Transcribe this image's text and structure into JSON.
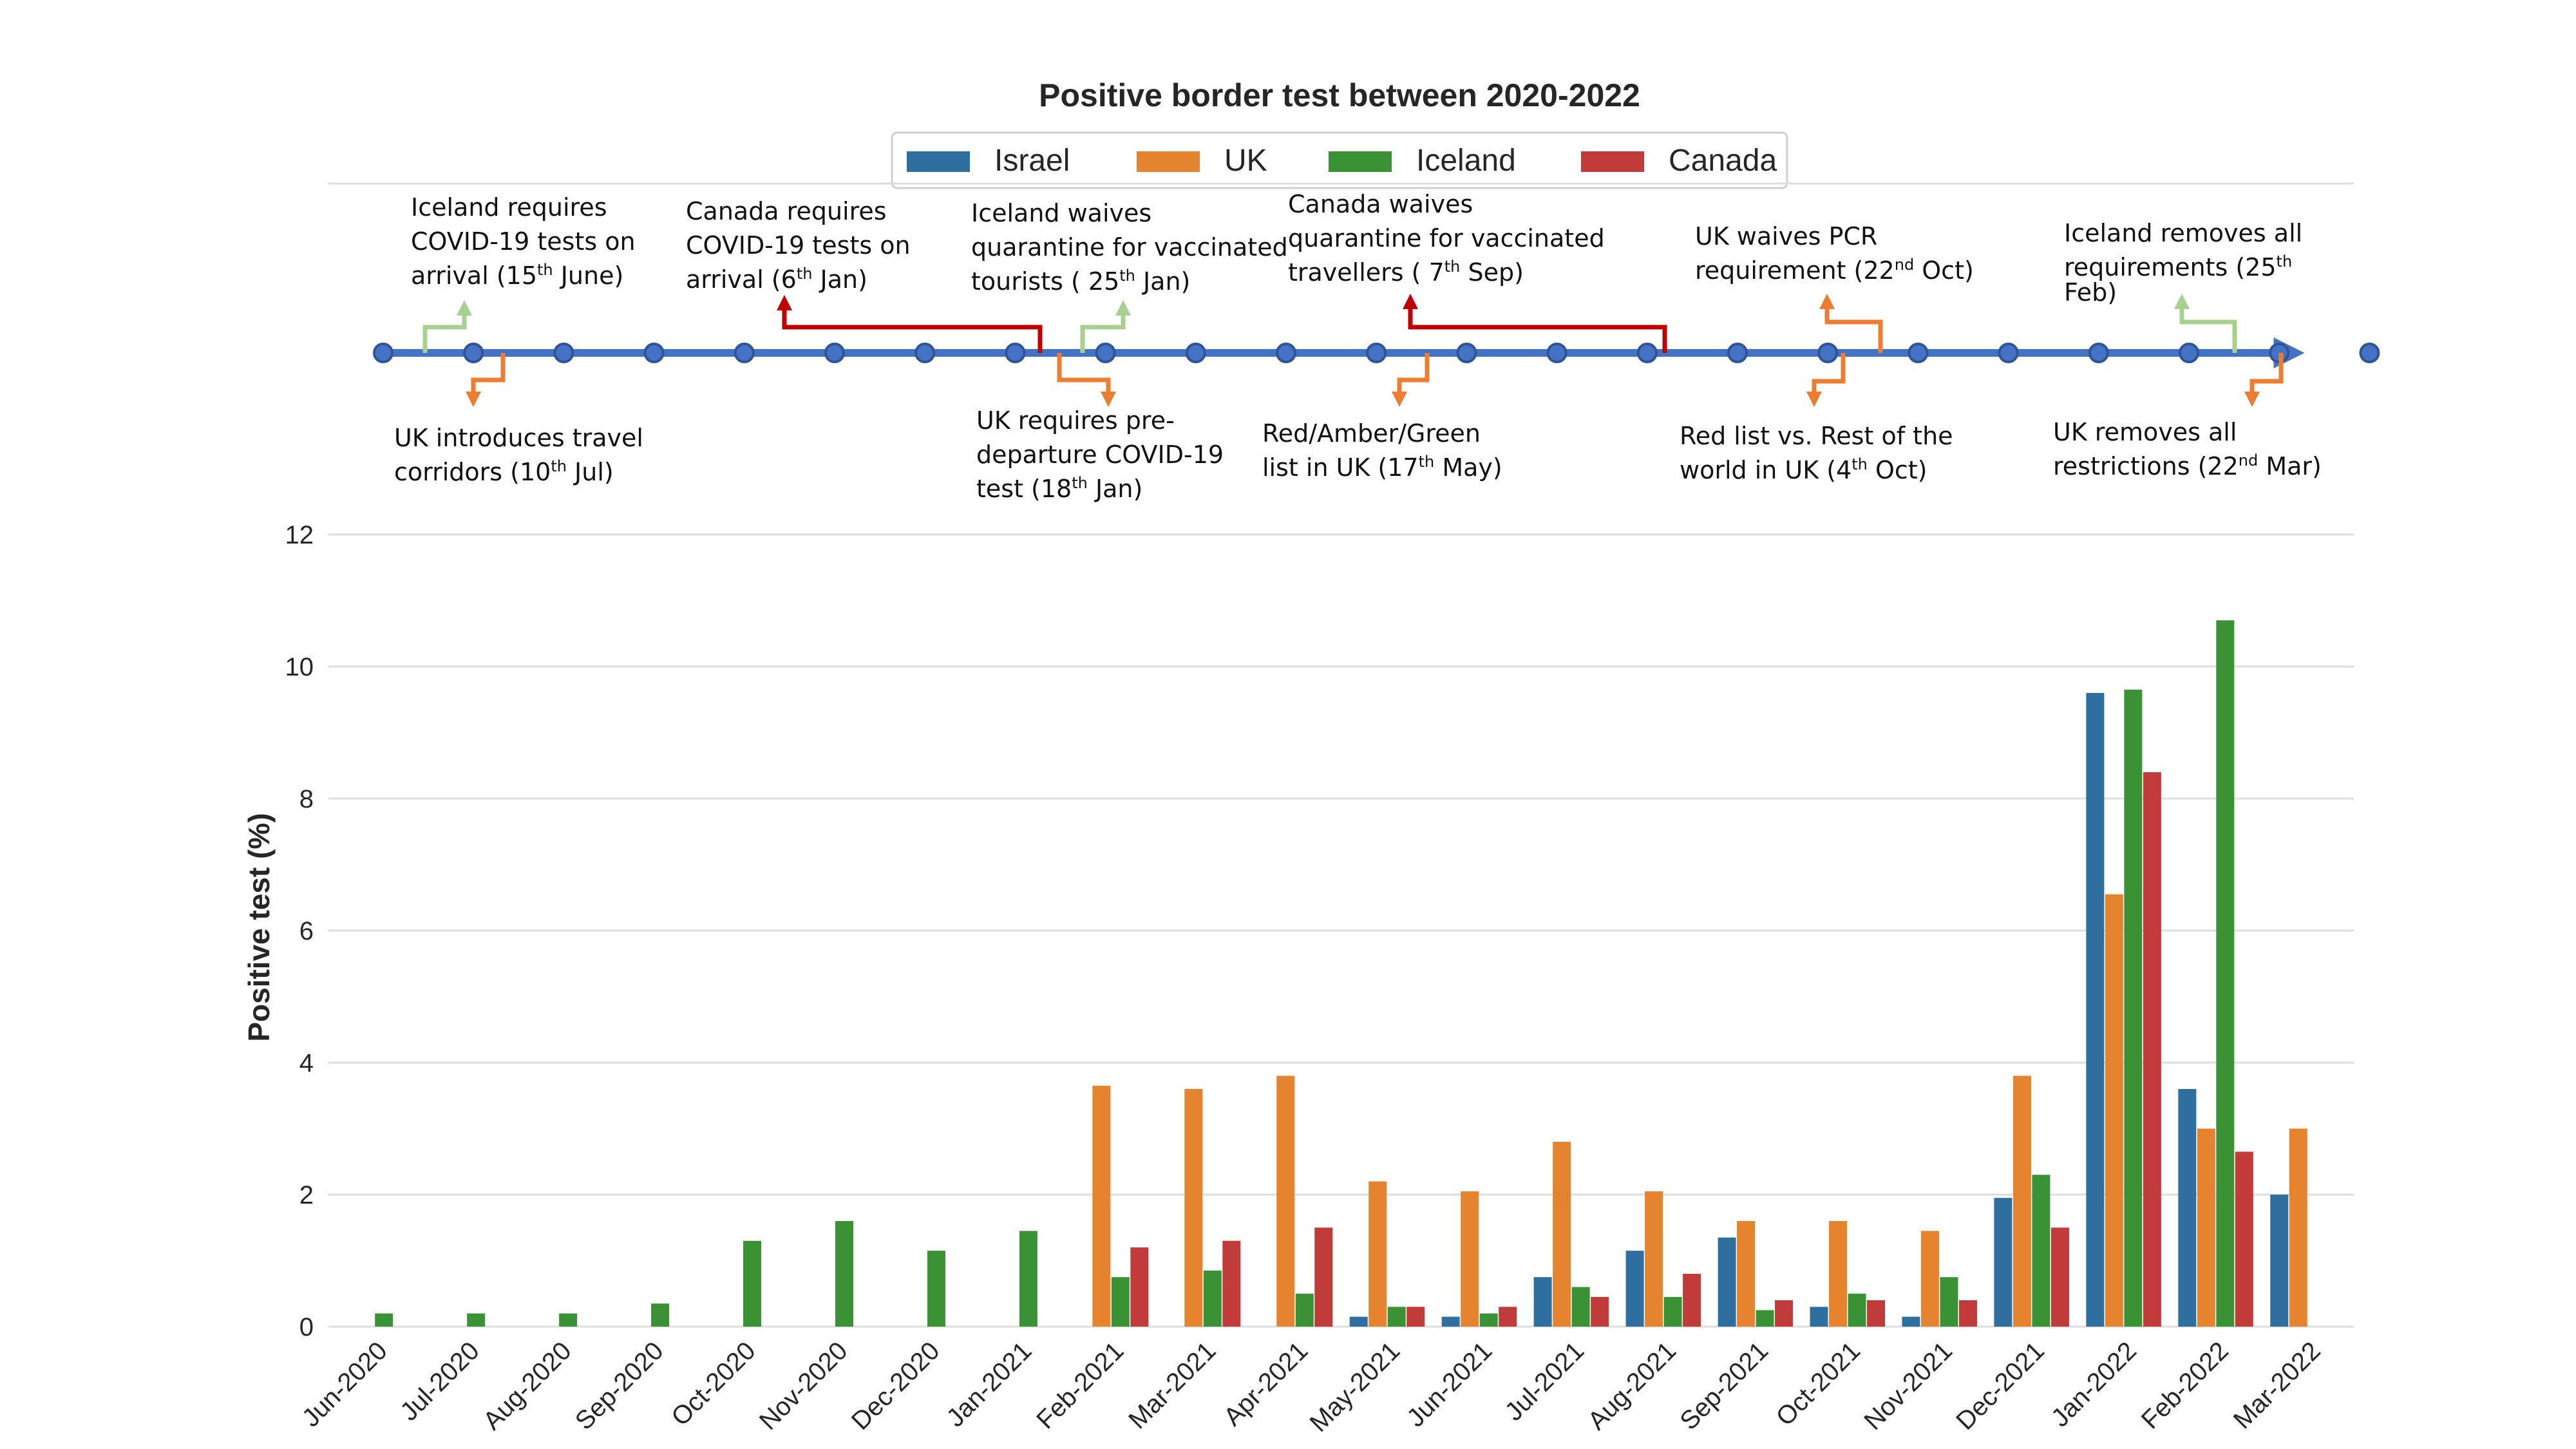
{
  "chart_data": {
    "type": "bar",
    "title": "Positive border test between 2020-2022",
    "xlabel": "",
    "ylabel": "Positive test (%)",
    "ylim": [
      0,
      12
    ],
    "yticks": [
      0,
      2,
      4,
      6,
      8,
      10,
      12
    ],
    "grid": true,
    "legend_position": "top-center",
    "categories": [
      "Jun-2020",
      "Jul-2020",
      "Aug-2020",
      "Sep-2020",
      "Oct-2020",
      "Nov-2020",
      "Dec-2020",
      "Jan-2021",
      "Feb-2021",
      "Mar-2021",
      "Apr-2021",
      "May-2021",
      "Jun-2021",
      "Jul-2021",
      "Aug-2021",
      "Sep-2021",
      "Oct-2021",
      "Nov-2021",
      "Dec-2021",
      "Jan-2022",
      "Feb-2022",
      "Mar-2022"
    ],
    "series": [
      {
        "name": "Israel",
        "color": "#2e6fa0",
        "values": [
          null,
          null,
          null,
          null,
          null,
          null,
          null,
          null,
          null,
          null,
          null,
          0.15,
          0.15,
          0.75,
          1.15,
          1.35,
          0.3,
          0.15,
          1.95,
          9.6,
          3.6,
          2.0
        ]
      },
      {
        "name": "UK",
        "color": "#e5832e",
        "values": [
          null,
          null,
          null,
          null,
          null,
          null,
          null,
          null,
          3.65,
          3.6,
          3.8,
          2.2,
          2.05,
          2.8,
          2.05,
          1.6,
          1.6,
          1.45,
          3.8,
          6.55,
          3.0,
          3.0
        ]
      },
      {
        "name": "Iceland",
        "color": "#3b9235",
        "values": [
          0.2,
          0.2,
          0.2,
          0.35,
          1.3,
          1.6,
          1.15,
          1.45,
          0.75,
          0.85,
          0.5,
          0.3,
          0.2,
          0.6,
          0.45,
          0.25,
          0.5,
          0.75,
          2.3,
          9.65,
          10.7,
          null
        ]
      },
      {
        "name": "Canada",
        "color": "#c13b3b",
        "values": [
          null,
          null,
          null,
          null,
          null,
          null,
          null,
          null,
          1.2,
          1.3,
          1.5,
          0.3,
          0.3,
          0.45,
          0.8,
          0.4,
          0.4,
          0.4,
          1.5,
          8.4,
          2.65,
          null
        ]
      }
    ]
  },
  "timeline": {
    "events": [
      {
        "parts": [
          [
            "Iceland requires",
            ""
          ],
          [
            "COVID-19 tests on",
            ""
          ],
          [
            "arrival (15",
            "th",
            " June)"
          ]
        ],
        "color": "#a9d08e",
        "direction": "up"
      },
      {
        "parts": [
          [
            "UK introduces travel",
            ""
          ],
          [
            "corridors (10",
            "th",
            " Jul)"
          ]
        ],
        "color": "#ed7d31",
        "direction": "down"
      },
      {
        "parts": [
          [
            "Canada requires",
            ""
          ],
          [
            "COVID-19 tests on",
            ""
          ],
          [
            "arrival (6",
            "th",
            " Jan)"
          ]
        ],
        "color": "#c00000",
        "direction": "up"
      },
      {
        "parts": [
          [
            "Iceland waives",
            ""
          ],
          [
            "quarantine for vaccinated",
            ""
          ],
          [
            "tourists ( 25",
            "th",
            " Jan)"
          ]
        ],
        "color": "#a9d08e",
        "direction": "up"
      },
      {
        "parts": [
          [
            "UK requires pre-",
            ""
          ],
          [
            "departure COVID-19",
            ""
          ],
          [
            "test (18",
            "th",
            " Jan)"
          ]
        ],
        "color": "#ed7d31",
        "direction": "down"
      },
      {
        "parts": [
          [
            "Red/Amber/Green",
            ""
          ],
          [
            "list in UK (17",
            "th",
            " May)"
          ]
        ],
        "color": "#ed7d31",
        "direction": "down"
      },
      {
        "parts": [
          [
            "Canada waives",
            ""
          ],
          [
            "quarantine for vaccinated",
            ""
          ],
          [
            "travellers ( 7",
            "th",
            " Sep)"
          ]
        ],
        "color": "#c00000",
        "direction": "up"
      },
      {
        "parts": [
          [
            "UK waives PCR",
            ""
          ],
          [
            "requirement (22",
            "nd",
            " Oct)"
          ]
        ],
        "color": "#ed7d31",
        "direction": "up"
      },
      {
        "parts": [
          [
            "Red list vs. Rest of the",
            ""
          ],
          [
            "world in UK (4",
            "th",
            " Oct)"
          ]
        ],
        "color": "#ed7d31",
        "direction": "down"
      },
      {
        "parts": [
          [
            "Iceland removes all",
            ""
          ],
          [
            "requirements (25",
            "th",
            ""
          ],
          [
            "Feb)",
            ""
          ]
        ],
        "color": "#a9d08e",
        "direction": "up"
      },
      {
        "parts": [
          [
            "UK removes all",
            ""
          ],
          [
            "restrictions (22",
            "nd",
            " Mar)"
          ]
        ],
        "color": "#ed7d31",
        "direction": "down"
      }
    ]
  }
}
